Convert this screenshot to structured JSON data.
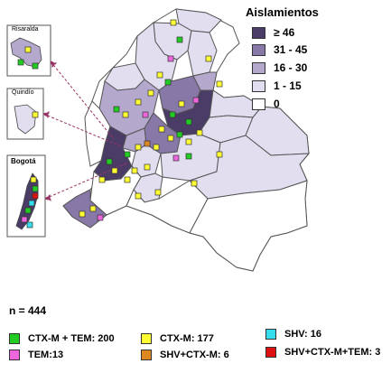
{
  "legend": {
    "title": "Aislamientos",
    "items": [
      {
        "label": "≥ 46",
        "color": "#4a3c66"
      },
      {
        "label": "31 - 45",
        "color": "#8878a8"
      },
      {
        "label": "16 - 30",
        "color": "#b4a9cc"
      },
      {
        "label": "1 - 15",
        "color": "#e2def0"
      },
      {
        "label": "0",
        "color": "#ffffff"
      }
    ]
  },
  "insets": {
    "risaralda": "Risaralda",
    "quindio": "Quindío",
    "bogota": "Bogotá"
  },
  "n_label": "n = 444",
  "marker_key": [
    {
      "label": "CTX-M + TEM: 200",
      "color": "#22cc22"
    },
    {
      "label": "CTX-M: 177",
      "color": "#ffff33"
    },
    {
      "label": "SHV: 16",
      "color": "#33ddee"
    },
    {
      "label": "TEM:13",
      "color": "#ee66dd"
    },
    {
      "label": "SHV+CTX-M: 6",
      "color": "#dd8822"
    },
    {
      "label": "SHV+CTX-M+TEM: 3",
      "color": "#dd1111"
    }
  ],
  "icons": {
    "arrow": "dashed-arrow",
    "marker": "square-marker"
  }
}
